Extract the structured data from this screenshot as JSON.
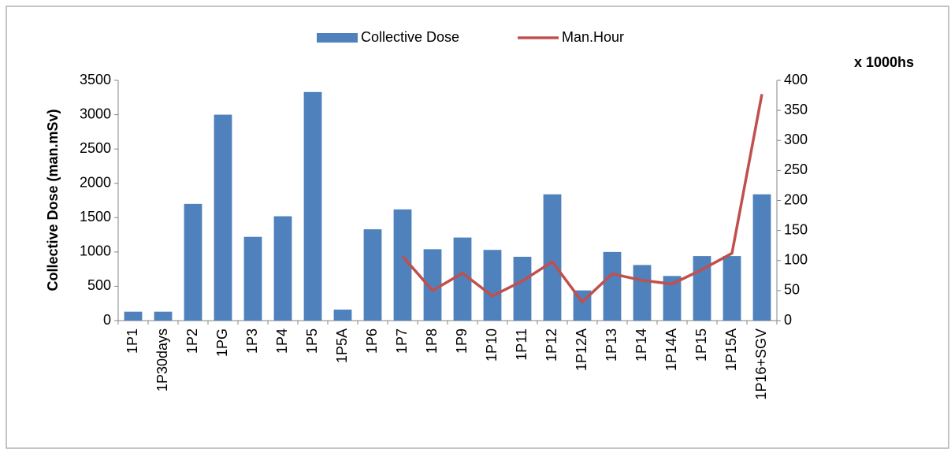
{
  "chart_data": {
    "type": "bar",
    "y_label": "Collective Dose (man.mSv)",
    "annotation": "x 1000hs",
    "categories": [
      "1P1",
      "1P30days",
      "1P2",
      "1PG",
      "1P3",
      "1P4",
      "1P5",
      "1P5A",
      "1P6",
      "1P7",
      "1P8",
      "1P9",
      "1P10",
      "1P11",
      "1P12",
      "1P12A",
      "1P13",
      "1P14",
      "1P14A",
      "1P15",
      "1P15A",
      "1P16+SGV"
    ],
    "series": [
      {
        "name": "Collective Dose",
        "type": "bar",
        "color": "#4f81bd",
        "values": [
          130,
          130,
          1700,
          3000,
          1220,
          1520,
          3330,
          160,
          1330,
          1620,
          1040,
          1210,
          1030,
          930,
          1840,
          440,
          1000,
          810,
          650,
          940,
          940,
          1840
        ]
      },
      {
        "name": "Man.Hour",
        "type": "line",
        "axis": "y2",
        "color": "#c0504d",
        "values": [
          null,
          null,
          null,
          null,
          null,
          null,
          null,
          null,
          null,
          107,
          50,
          79,
          41,
          66,
          98,
          31,
          78,
          67,
          61,
          85,
          112,
          377
        ]
      }
    ],
    "ylim": [
      0,
      3500
    ],
    "yticks": [
      0,
      500,
      1000,
      1500,
      2000,
      2500,
      3000,
      3500
    ],
    "y2lim": [
      0,
      400
    ],
    "y2ticks": [
      0,
      50,
      100,
      150,
      200,
      250,
      300,
      350,
      400
    ],
    "legend": "top",
    "grid": false
  }
}
